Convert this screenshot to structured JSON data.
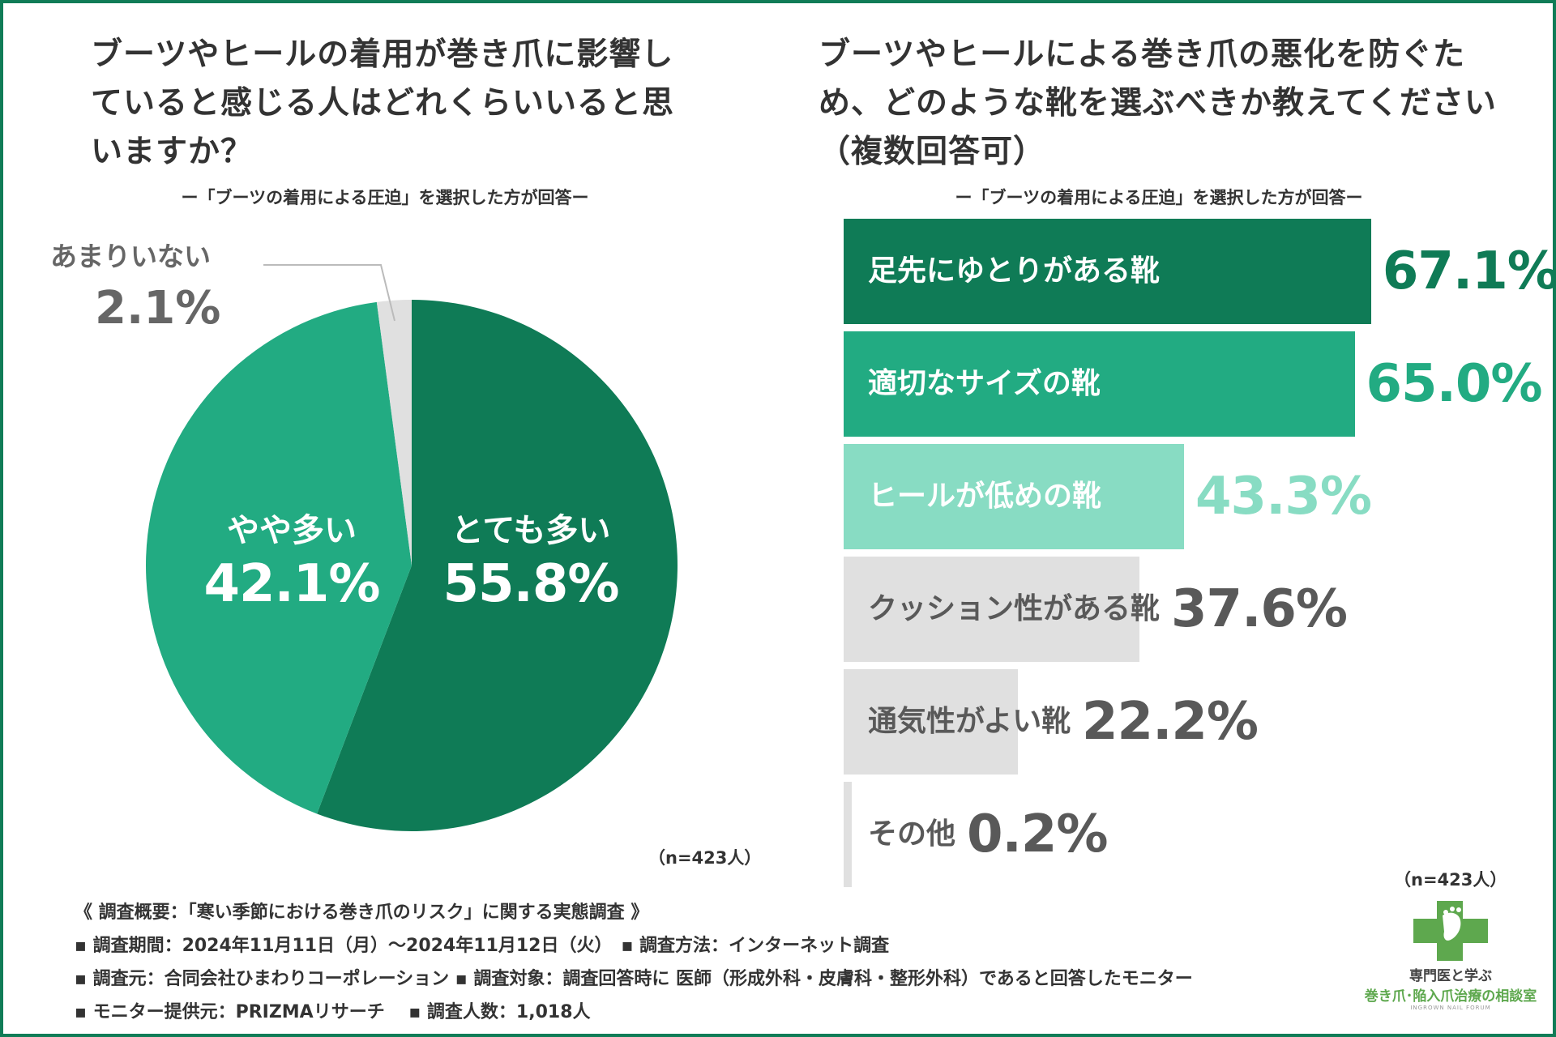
{
  "left": {
    "title_lines": [
      "ブーツやヒールの着用が巻き爪に影響し",
      "ていると感じる人はどれくらいいると思",
      "いますか？"
    ],
    "subtitle": "ー「ブーツの着用による圧迫」を選択した方が回答ー",
    "n": "（n=423人）"
  },
  "right": {
    "title_lines": [
      "ブーツやヒールによる巻き爪の悪化を防ぐた",
      "め、どのような靴を選ぶべきか教えてください",
      "（複数回答可）"
    ],
    "subtitle": "ー「ブーツの着用による圧迫」を選択した方が回答ー",
    "n": "（n=423人）"
  },
  "colors": {
    "dark_green": "#0f7b56",
    "mid_green": "#22ab82",
    "light_green": "#88dcc3",
    "gray": "#e0e0e0",
    "gray_text": "#595959",
    "label_gray": "#666666"
  },
  "chart_data": [
    {
      "type": "pie",
      "title": "ブーツやヒールの着用が巻き爪に影響していると感じる人はどれくらいいると思いますか？",
      "slices": [
        {
          "label": "とても多い",
          "value": 55.8,
          "display": "55.8%",
          "color": "#0f7b56"
        },
        {
          "label": "やや多い",
          "value": 42.1,
          "display": "42.1%",
          "color": "#22ab82"
        },
        {
          "label": "あまりいない",
          "value": 2.1,
          "display": "2.1%",
          "color": "#e0e0e0"
        }
      ]
    },
    {
      "type": "bar",
      "orientation": "horizontal",
      "title": "ブーツやヒールによる巻き爪の悪化を防ぐため、どのような靴を選ぶべきか教えてください（複数回答可）",
      "categories": [
        "足先にゆとりがある靴",
        "適切なサイズの靴",
        "ヒールが低めの靴",
        "クッション性がある靴",
        "通気性がよい靴",
        "その他"
      ],
      "values": [
        67.1,
        65.0,
        43.3,
        37.6,
        22.2,
        0.2
      ],
      "labels": [
        "67.1%",
        "65.0%",
        "43.3%",
        "37.6%",
        "22.2%",
        "0.2%"
      ],
      "xlim": [
        0,
        100
      ]
    }
  ],
  "survey": {
    "header": "《 調査概要：「寒い季節における巻き爪のリスク」に関する実態調査 》",
    "line1": "▪ 調査期間：2024年11月11日（月）〜2024年11月12日（火）　▪ 調査方法：インターネット調査",
    "line2": "▪ 調査元：合同会社ひまわりコーポレーション ▪ 調査対象：調査回答時に 医師（形成外科・皮膚科・整形外科）であると回答したモニター",
    "line3": "▪ モニター提供元：PRIZMAリサーチ　 ▪ 調査人数：1,018人"
  },
  "logo": {
    "line1": "専門医と学ぶ",
    "line2": "巻き爪･陥入爪治療の相談室",
    "line3": "INGROWN NAIL FORUM"
  }
}
